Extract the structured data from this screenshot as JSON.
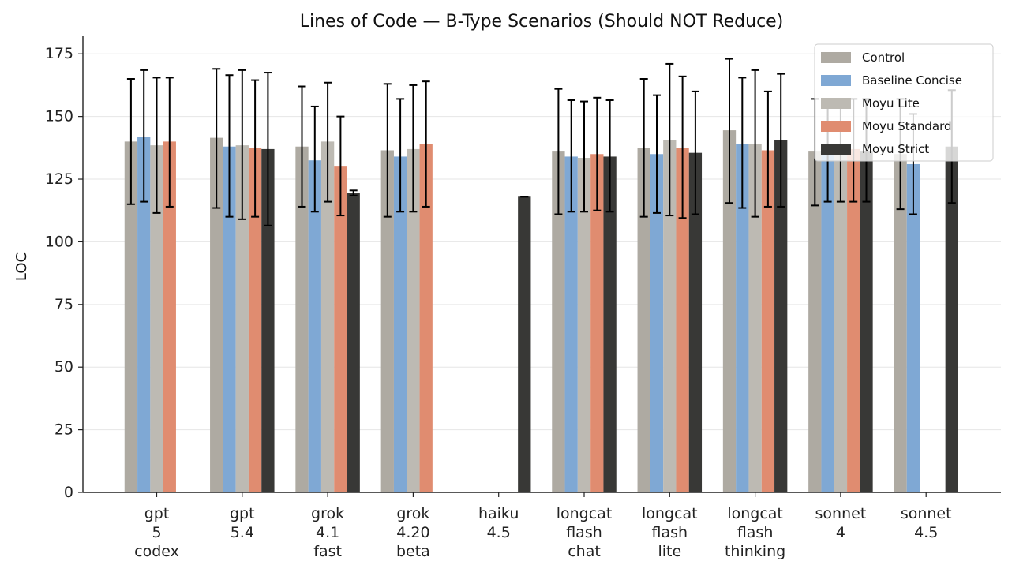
{
  "chart_data": {
    "type": "bar",
    "title": "Lines of Code — B-Type Scenarios (Should NOT Reduce)",
    "xlabel": "",
    "ylabel": "LOC",
    "ylim": [
      0,
      182
    ],
    "yticks": [
      0,
      25,
      50,
      75,
      100,
      125,
      150,
      175
    ],
    "grid": "y",
    "legend_position": "top-right",
    "categories": [
      [
        "gpt",
        "5",
        "codex"
      ],
      [
        "gpt",
        "5.4"
      ],
      [
        "grok",
        "4.1",
        "fast"
      ],
      [
        "grok",
        "4.20",
        "beta"
      ],
      [
        "haiku",
        "4.5"
      ],
      [
        "longcat",
        "flash",
        "chat"
      ],
      [
        "longcat",
        "flash",
        "lite"
      ],
      [
        "longcat",
        "flash",
        "thinking"
      ],
      [
        "sonnet",
        "4"
      ],
      [
        "sonnet",
        "4.5"
      ]
    ],
    "series": [
      {
        "name": "Control",
        "color": "#aeaaa2",
        "values": [
          140,
          141.5,
          138,
          136.5,
          0,
          136,
          137.5,
          144.5,
          136,
          135
        ],
        "err_low": [
          115,
          113.5,
          114,
          110,
          null,
          111,
          110,
          115.5,
          114.5,
          113
        ],
        "err_high": [
          165,
          169,
          162,
          163,
          null,
          161,
          165,
          173,
          157,
          157
        ]
      },
      {
        "name": "Baseline Concise",
        "color": "#7fa8d4",
        "values": [
          142,
          138,
          132.5,
          134,
          0,
          134,
          135,
          139,
          136,
          131
        ],
        "err_low": [
          116,
          110,
          112,
          112,
          null,
          112,
          111.5,
          113.5,
          116,
          111
        ],
        "err_high": [
          168.5,
          166.5,
          154,
          157,
          null,
          156.5,
          158.5,
          165.5,
          157,
          151
        ]
      },
      {
        "name": "Moyu Lite",
        "color": "#bdbab3",
        "values": [
          138.5,
          138.5,
          140,
          137,
          0,
          133.5,
          140.5,
          139,
          136.5,
          0
        ],
        "err_low": [
          111.5,
          109,
          116,
          112,
          null,
          112,
          110.5,
          110,
          116,
          null
        ],
        "err_high": [
          165.5,
          168.5,
          163.5,
          162.5,
          null,
          156,
          171,
          168.5,
          157,
          null
        ]
      },
      {
        "name": "Moyu Standard",
        "color": "#e08c70",
        "values": [
          140,
          137.5,
          130,
          139,
          0,
          135,
          137.5,
          136.5,
          137,
          0
        ],
        "err_low": [
          114,
          110,
          110.5,
          114,
          null,
          112.5,
          109.5,
          114,
          116,
          null
        ],
        "err_high": [
          165.5,
          164.5,
          150,
          164,
          null,
          157.5,
          166,
          160,
          157,
          null
        ]
      },
      {
        "name": "Moyu Strict",
        "color": "#383836",
        "values": [
          0,
          137,
          119.5,
          0,
          118,
          134,
          135.5,
          140.5,
          136,
          138
        ],
        "err_low": [
          null,
          106.5,
          118.5,
          null,
          118,
          112,
          111,
          114,
          116,
          115.5
        ],
        "err_high": [
          null,
          167.5,
          120.5,
          null,
          118,
          156.5,
          160,
          167,
          157,
          160.5
        ]
      }
    ]
  }
}
